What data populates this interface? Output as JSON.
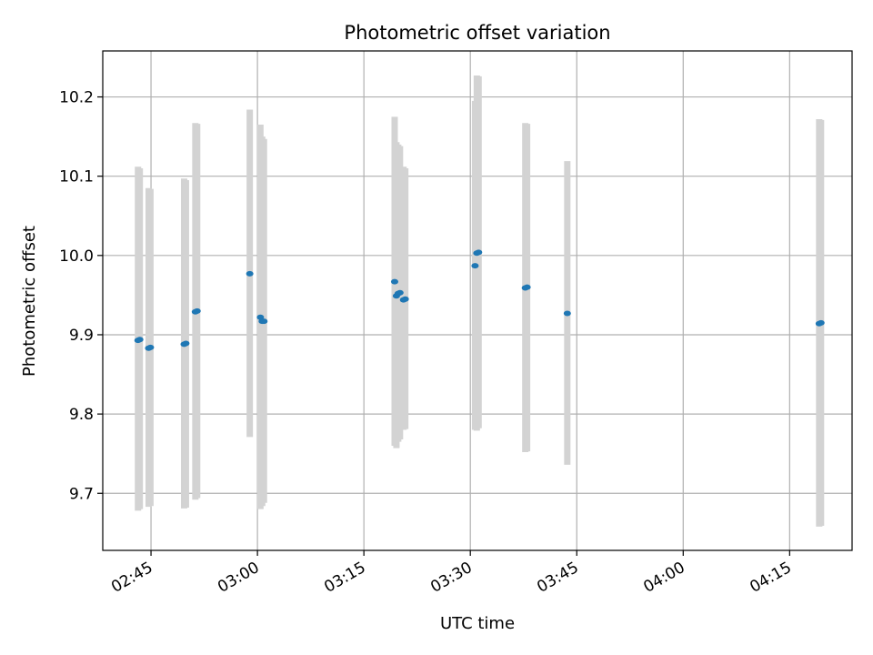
{
  "chart_data": {
    "type": "scatter",
    "title": "Photometric offset variation",
    "xlabel": "UTC time",
    "ylabel": "Photometric offset",
    "x_tick_labels": [
      "02:45",
      "03:00",
      "03:15",
      "03:30",
      "03:45",
      "04:00",
      "04:15"
    ],
    "x_tick_minutes": [
      165,
      180,
      195,
      210,
      225,
      240,
      255
    ],
    "y_ticks": [
      "9.7",
      "9.8",
      "9.9",
      "10.0",
      "10.1",
      "10.2"
    ],
    "xlim_minutes": [
      158.2,
      263.8
    ],
    "ylim": [
      9.628,
      10.258
    ],
    "grid": true,
    "colors": {
      "point": "#1f77b4",
      "errorbar": "#d3d3d3",
      "grid": "#b0b0b0",
      "axis": "#000000"
    },
    "points": [
      {
        "t": "02:43:10",
        "y": 9.893,
        "ylo": 9.678,
        "yhi": 10.112
      },
      {
        "t": "02:43:25",
        "y": 9.894,
        "ylo": 9.68,
        "yhi": 10.11
      },
      {
        "t": "02:44:40",
        "y": 9.883,
        "ylo": 9.683,
        "yhi": 10.085
      },
      {
        "t": "02:44:55",
        "y": 9.884,
        "ylo": 9.684,
        "yhi": 10.084
      },
      {
        "t": "02:49:40",
        "y": 9.888,
        "ylo": 9.681,
        "yhi": 10.097
      },
      {
        "t": "02:49:55",
        "y": 9.889,
        "ylo": 9.682,
        "yhi": 10.095
      },
      {
        "t": "02:51:15",
        "y": 9.929,
        "ylo": 9.692,
        "yhi": 10.167
      },
      {
        "t": "02:51:30",
        "y": 9.93,
        "ylo": 9.694,
        "yhi": 10.166
      },
      {
        "t": "02:58:55",
        "y": 9.977,
        "ylo": 9.771,
        "yhi": 10.184
      },
      {
        "t": "03:00:25",
        "y": 9.922,
        "ylo": 9.68,
        "yhi": 10.165
      },
      {
        "t": "03:00:40",
        "y": 9.917,
        "ylo": 9.684,
        "yhi": 10.15
      },
      {
        "t": "03:00:55",
        "y": 9.917,
        "ylo": 9.688,
        "yhi": 10.147
      },
      {
        "t": "03:19:20",
        "y": 9.967,
        "ylo": 9.76,
        "yhi": 10.175
      },
      {
        "t": "03:19:35",
        "y": 9.949,
        "ylo": 9.757,
        "yhi": 10.143
      },
      {
        "t": "03:19:50",
        "y": 9.952,
        "ylo": 9.765,
        "yhi": 10.14
      },
      {
        "t": "03:20:05",
        "y": 9.953,
        "ylo": 9.768,
        "yhi": 10.138
      },
      {
        "t": "03:20:35",
        "y": 9.944,
        "ylo": 9.78,
        "yhi": 10.112
      },
      {
        "t": "03:20:50",
        "y": 9.945,
        "ylo": 9.781,
        "yhi": 10.11
      },
      {
        "t": "03:30:40",
        "y": 9.987,
        "ylo": 9.78,
        "yhi": 10.195
      },
      {
        "t": "03:30:55",
        "y": 10.003,
        "ylo": 9.779,
        "yhi": 10.227
      },
      {
        "t": "03:31:10",
        "y": 10.004,
        "ylo": 9.782,
        "yhi": 10.226
      },
      {
        "t": "03:37:45",
        "y": 9.959,
        "ylo": 9.752,
        "yhi": 10.167
      },
      {
        "t": "03:38:00",
        "y": 9.96,
        "ylo": 9.753,
        "yhi": 10.166
      },
      {
        "t": "03:43:40",
        "y": 9.927,
        "ylo": 9.736,
        "yhi": 10.119
      },
      {
        "t": "04:19:10",
        "y": 9.914,
        "ylo": 9.658,
        "yhi": 10.172
      },
      {
        "t": "04:19:25",
        "y": 9.915,
        "ylo": 9.659,
        "yhi": 10.171
      }
    ]
  }
}
